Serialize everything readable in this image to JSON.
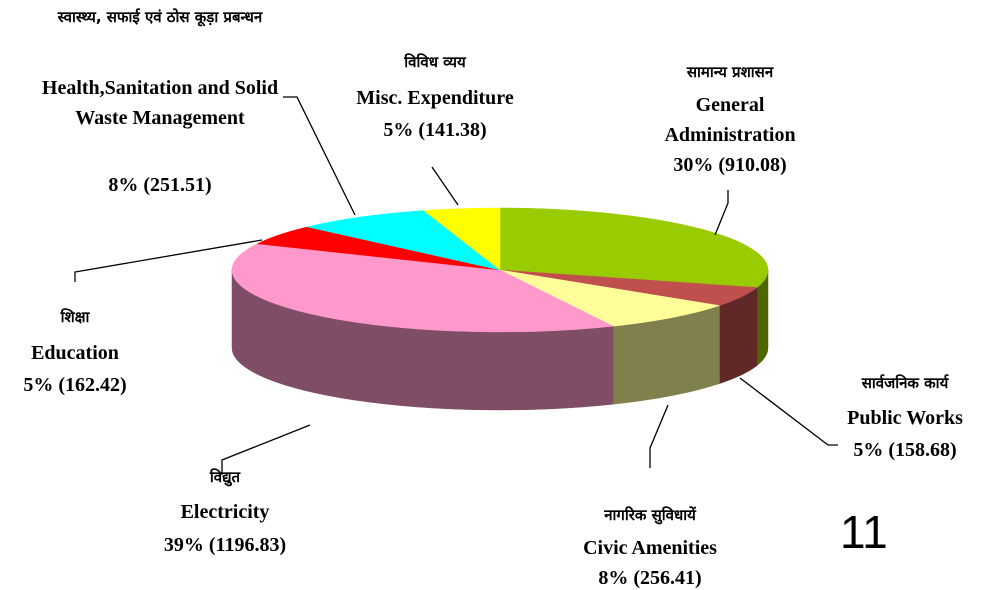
{
  "chart_data": {
    "type": "pie",
    "hindi_names": [
      "सामान्य प्रशासन",
      "सार्वजनिक कार्य",
      "नागरिक सुविधायें",
      "विद्युत",
      "शिक्षा",
      "स्वास्थ्य, सफाई एवं ठोस कूड़ा प्रबन्धन",
      "विविध व्यय"
    ],
    "categories": [
      "General Administration",
      "Public Works",
      "Civic Amenities",
      "Electricity",
      "Education",
      "Health,Sanitation and Solid Waste Management",
      "Misc. Expenditure"
    ],
    "values": [
      910.08,
      158.68,
      256.41,
      1196.83,
      162.42,
      251.51,
      141.38
    ],
    "value_labels": [
      "30% (910.08)",
      "5% (158.68)",
      "8% (256.41)",
      "39% (1196.83)",
      "5% (162.42)",
      "8% (251.51)",
      "5% (141.38)"
    ],
    "colors": [
      "#99cc00",
      "#c0504d",
      "#ffff99",
      "#ff99cc",
      "#ff0000",
      "#00ffff",
      "#ffff00"
    ]
  },
  "page_number": "11"
}
